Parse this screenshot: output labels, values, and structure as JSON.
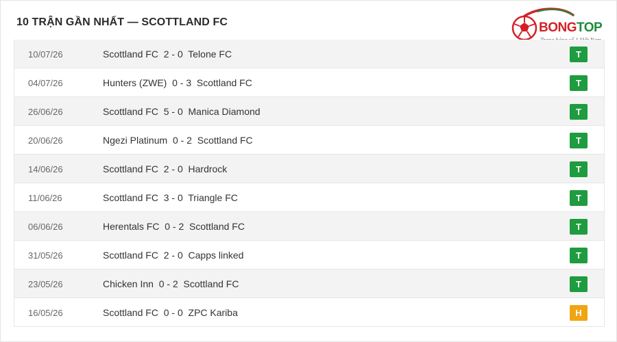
{
  "title": "10 TRẬN GẦN NHẤT — SCOTTLAND FC",
  "logo": {
    "brand_part1": "BONG",
    "brand_part2": "TOP",
    "tagline": "Trang bóng số 1 Việt Nam",
    "icon": "soccer-ball-icon",
    "colors": {
      "red": "#d32027",
      "green": "#1e8b3a"
    }
  },
  "colors": {
    "win": "#1e9c3f",
    "draw": "#f0a514"
  },
  "matches": [
    {
      "date": "10/07/26",
      "home": "Scottland FC",
      "score": "2 - 0",
      "away": "Telone FC",
      "result": "T"
    },
    {
      "date": "04/07/26",
      "home": "Hunters (ZWE)",
      "score": "0 - 3",
      "away": "Scottland FC",
      "result": "T"
    },
    {
      "date": "26/06/26",
      "home": "Scottland FC",
      "score": "5 - 0",
      "away": "Manica Diamond",
      "result": "T"
    },
    {
      "date": "20/06/26",
      "home": "Ngezi Platinum",
      "score": "0 - 2",
      "away": "Scottland FC",
      "result": "T"
    },
    {
      "date": "14/06/26",
      "home": "Scottland FC",
      "score": "2 - 0",
      "away": "Hardrock",
      "result": "T"
    },
    {
      "date": "11/06/26",
      "home": "Scottland FC",
      "score": "3 - 0",
      "away": "Triangle FC",
      "result": "T"
    },
    {
      "date": "06/06/26",
      "home": "Herentals FC",
      "score": "0 - 2",
      "away": "Scottland FC",
      "result": "T"
    },
    {
      "date": "31/05/26",
      "home": "Scottland FC",
      "score": "2 - 0",
      "away": "Capps linked",
      "result": "T"
    },
    {
      "date": "23/05/26",
      "home": "Chicken Inn",
      "score": "0 - 2",
      "away": "Scottland FC",
      "result": "T"
    },
    {
      "date": "16/05/26",
      "home": "Scottland FC",
      "score": "0 - 0",
      "away": "ZPC Kariba",
      "result": "H"
    }
  ]
}
